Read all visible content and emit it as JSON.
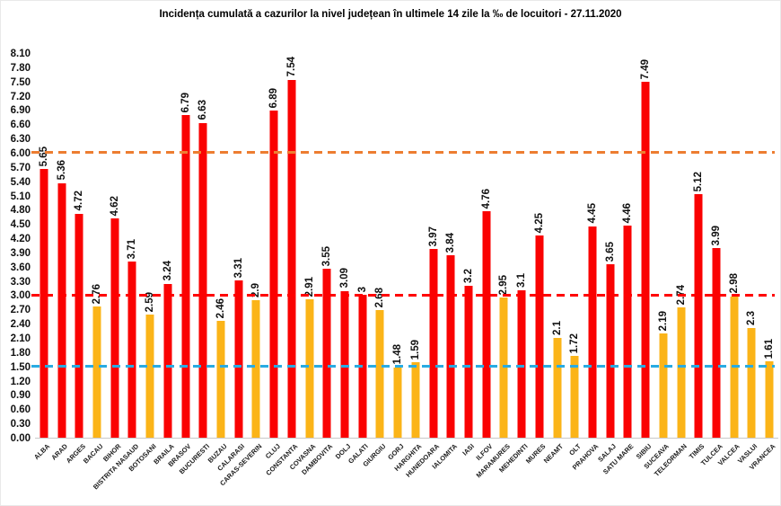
{
  "title": "Incidența cumulată a cazurilor la nivel județean în ultimele 14 zile la ‰ de locuitori - 27.11.2020",
  "chart_data": {
    "type": "bar",
    "title": "Incidența cumulată a cazurilor la nivel județean în ultimele 14 zile la ‰ de locuitori - 27.11.2020",
    "ylim": [
      0,
      8.1
    ],
    "ytick_step": 0.3,
    "grid": false,
    "legend_position": "none",
    "xlabel": "",
    "ylabel": "",
    "categories": [
      "ALBA",
      "ARAD",
      "ARGES",
      "BACAU",
      "BIHOR",
      "BISTRITA NASAUD",
      "BOTOSANI",
      "BRAILA",
      "BRASOV",
      "BUCURESTI",
      "BUZAU",
      "CALARASI",
      "CARAS-SEVERIN",
      "CLUJ",
      "CONSTANTA",
      "COVASNA",
      "DAMBOVITA",
      "DOLJ",
      "GALATI",
      "GIURGIU",
      "GORJ",
      "HARGHITA",
      "HUNEDOARA",
      "IALOMITA",
      "IASI",
      "ILFOV",
      "MARAMURES",
      "MEHEDINTI",
      "MURES",
      "NEAMT",
      "OLT",
      "PRAHOVA",
      "SALAJ",
      "SATU MARE",
      "SIBIU",
      "SUCEAVA",
      "TELEORMAN",
      "TIMIS",
      "TULCEA",
      "VALCEA",
      "VASLUI",
      "VRANCEA"
    ],
    "values": [
      5.65,
      5.36,
      4.72,
      2.76,
      4.62,
      3.71,
      2.59,
      3.24,
      6.79,
      6.63,
      2.46,
      3.31,
      2.9,
      6.89,
      7.54,
      2.91,
      3.55,
      3.09,
      3,
      2.68,
      1.48,
      1.59,
      3.97,
      3.84,
      3.2,
      4.76,
      2.95,
      3.1,
      4.25,
      2.1,
      1.72,
      4.45,
      3.65,
      4.46,
      7.49,
      2.19,
      2.74,
      5.12,
      3.99,
      2.98,
      2.3,
      1.61
    ],
    "value_labels": [
      "5.65",
      "5.36",
      "4.72",
      "2.76",
      "4.62",
      "3.71",
      "2.59",
      "3.24",
      "6.79",
      "6.63",
      "2.46",
      "3.31",
      "2.9",
      "6.89",
      "7.54",
      "2.91",
      "3.55",
      "3.09",
      "3",
      "2.68",
      "1.48",
      "1.59",
      "3.97",
      "3.84",
      "3.2",
      "4.76",
      "2.95",
      "3.1",
      "4.25",
      "2.1",
      "1.72",
      "4.45",
      "3.65",
      "4.46",
      "7.49",
      "2.19",
      "2.74",
      "5.12",
      "3.99",
      "2.98",
      "2.3",
      "1.61"
    ],
    "bar_color_keys": [
      "red",
      "red",
      "red",
      "yellow",
      "red",
      "red",
      "yellow",
      "red",
      "red",
      "red",
      "yellow",
      "red",
      "yellow",
      "red",
      "red",
      "yellow",
      "red",
      "red",
      "red",
      "yellow",
      "yellow",
      "yellow",
      "red",
      "red",
      "red",
      "red",
      "yellow",
      "red",
      "red",
      "yellow",
      "yellow",
      "red",
      "red",
      "red",
      "red",
      "yellow",
      "yellow",
      "red",
      "red",
      "yellow",
      "yellow",
      "yellow"
    ],
    "palette": {
      "red": "#fa0202",
      "yellow": "#fbb418"
    },
    "color_threshold": 3,
    "reference_lines": [
      {
        "label": "6.00",
        "value": 6,
        "color": "#ed7d31",
        "style": "dashed"
      },
      {
        "label": "3.00",
        "value": 3,
        "color": "#ff0000",
        "style": "dashed"
      },
      {
        "label": "1.50",
        "value": 1.5,
        "color": "#29abe2",
        "style": "dashed"
      }
    ]
  }
}
